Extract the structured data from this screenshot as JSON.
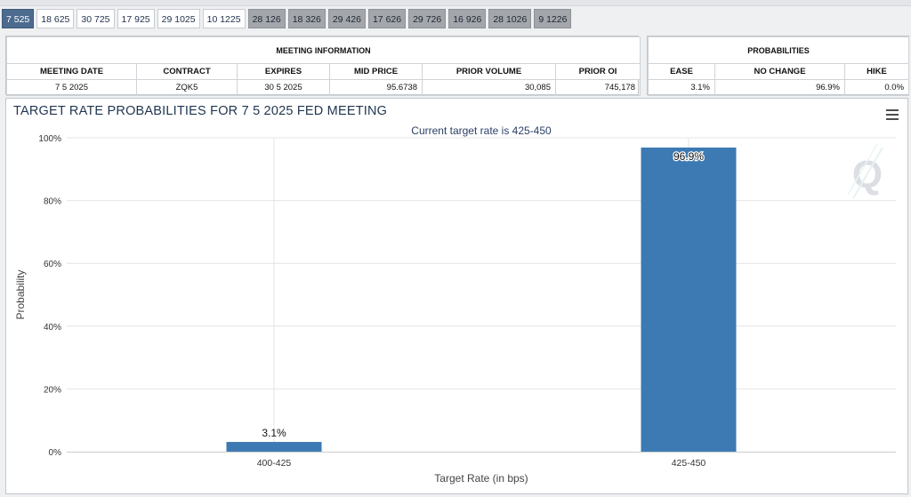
{
  "tabs": [
    {
      "label": "7 525",
      "state": "active"
    },
    {
      "label": "18 625",
      "state": "normal"
    },
    {
      "label": "30 725",
      "state": "normal"
    },
    {
      "label": "17 925",
      "state": "normal"
    },
    {
      "label": "29 1025",
      "state": "normal"
    },
    {
      "label": "10 1225",
      "state": "normal"
    },
    {
      "label": "28 126",
      "state": "future"
    },
    {
      "label": "18 326",
      "state": "future"
    },
    {
      "label": "29 426",
      "state": "future"
    },
    {
      "label": "17 626",
      "state": "future"
    },
    {
      "label": "29 726",
      "state": "future"
    },
    {
      "label": "16 926",
      "state": "future"
    },
    {
      "label": "28 1026",
      "state": "future"
    },
    {
      "label": "9 1226",
      "state": "future"
    }
  ],
  "meeting_info": {
    "caption": "MEETING INFORMATION",
    "headers": [
      "MEETING DATE",
      "CONTRACT",
      "EXPIRES",
      "MID PRICE",
      "PRIOR VOLUME",
      "PRIOR OI"
    ],
    "row": [
      "7 5 2025",
      "ZQK5",
      "30 5 2025",
      "95.6738",
      "30,085",
      "745,178"
    ]
  },
  "probabilities": {
    "caption": "PROBABILITIES",
    "headers": [
      "EASE",
      "NO CHANGE",
      "HIKE"
    ],
    "row": [
      "3.1%",
      "96.9%",
      "0.0%"
    ]
  },
  "chart": {
    "title": "TARGET RATE PROBABILITIES FOR 7 5 2025 FED MEETING",
    "menu_icon": "hamburger-menu-icon",
    "watermark_icon": "q-logo-icon"
  },
  "colors": {
    "bar": "#3d7ab3",
    "active_tab": "#4d6b8f",
    "future_tab": "#a3a7ac",
    "title": "#1f3550"
  },
  "chart_data": {
    "type": "bar",
    "title": "Current target rate is 425-450",
    "xlabel": "Target Rate (in bps)",
    "ylabel": "Probability",
    "categories": [
      "400-425",
      "425-450"
    ],
    "values": [
      3.1,
      96.9
    ],
    "data_labels": [
      "3.1%",
      "96.9%"
    ],
    "ylim": [
      0,
      100
    ],
    "yticks": [
      0,
      20,
      40,
      60,
      80,
      100
    ],
    "ytick_labels": [
      "0%",
      "20%",
      "40%",
      "60%",
      "80%",
      "100%"
    ],
    "grid": true,
    "legend": "none"
  }
}
